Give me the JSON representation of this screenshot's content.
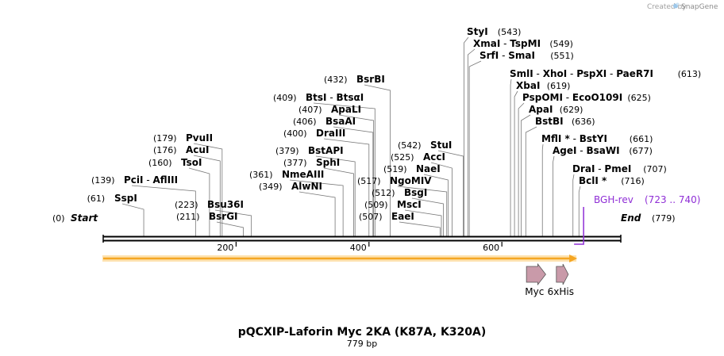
{
  "credit": {
    "prefix": "Created by",
    "brand": "SnapGene"
  },
  "title": "pQCXIP-Laforin Myc 2KA  (K87A, K320A)",
  "subtitle": "779 bp",
  "sequence_length": 779,
  "start_label": {
    "pos": "(0)",
    "name": "Start"
  },
  "end_label": {
    "name": "End",
    "pos": "(779)"
  },
  "axis_ticks": [
    "200",
    "400",
    "600"
  ],
  "sites": [
    {
      "pos": 61,
      "pos_label": "(61)",
      "names": [
        "SspI"
      ]
    },
    {
      "pos": 139,
      "pos_label": "(139)",
      "names": [
        "PciI",
        "AflIII"
      ]
    },
    {
      "pos": 160,
      "pos_label": "(160)",
      "names": [
        "TsoI"
      ]
    },
    {
      "pos": 176,
      "pos_label": "(176)",
      "names": [
        "AcuI"
      ]
    },
    {
      "pos": 179,
      "pos_label": "(179)",
      "names": [
        "PvuII"
      ]
    },
    {
      "pos": 211,
      "pos_label": "(211)",
      "names": [
        "BsrGI"
      ]
    },
    {
      "pos": 223,
      "pos_label": "(223)",
      "names": [
        "Bsu36I"
      ]
    },
    {
      "pos": 349,
      "pos_label": "(349)",
      "names": [
        "AlwNI"
      ]
    },
    {
      "pos": 361,
      "pos_label": "(361)",
      "names": [
        "NmeAIII"
      ]
    },
    {
      "pos": 377,
      "pos_label": "(377)",
      "names": [
        "SphI"
      ]
    },
    {
      "pos": 379,
      "pos_label": "(379)",
      "names": [
        "BstAPI"
      ]
    },
    {
      "pos": 400,
      "pos_label": "(400)",
      "names": [
        "DraIII"
      ]
    },
    {
      "pos": 406,
      "pos_label": "(406)",
      "names": [
        "BsaAI"
      ]
    },
    {
      "pos": 407,
      "pos_label": "(407)",
      "names": [
        "ApaLI"
      ]
    },
    {
      "pos": 409,
      "pos_label": "(409)",
      "names": [
        "BtsI",
        "BtsαI"
      ]
    },
    {
      "pos": 432,
      "pos_label": "(432)",
      "names": [
        "BsrBI"
      ]
    },
    {
      "pos": 507,
      "pos_label": "(507)",
      "names": [
        "EaeI"
      ]
    },
    {
      "pos": 509,
      "pos_label": "(509)",
      "names": [
        "MscI"
      ]
    },
    {
      "pos": 512,
      "pos_label": "(512)",
      "names": [
        "BsgI"
      ]
    },
    {
      "pos": 517,
      "pos_label": "(517)",
      "names": [
        "NgoMIV"
      ]
    },
    {
      "pos": 519,
      "pos_label": "(519)",
      "names": [
        "NaeI"
      ]
    },
    {
      "pos": 525,
      "pos_label": "(525)",
      "names": [
        "AccI"
      ]
    },
    {
      "pos": 542,
      "pos_label": "(542)",
      "names": [
        "StuI"
      ]
    },
    {
      "pos": 543,
      "pos_label": "(543)",
      "names": [
        "StyI"
      ]
    },
    {
      "pos": 549,
      "pos_label": "(549)",
      "names": [
        "XmaI",
        "TspMI"
      ]
    },
    {
      "pos": 551,
      "pos_label": "(551)",
      "names": [
        "SrfI",
        "SmaI"
      ]
    },
    {
      "pos": 613,
      "pos_label": "(613)",
      "names": [
        "SmlI",
        "XhoI",
        "PspXI",
        "PaeR7I"
      ]
    },
    {
      "pos": 619,
      "pos_label": "(619)",
      "names": [
        "XbaI"
      ]
    },
    {
      "pos": 625,
      "pos_label": "(625)",
      "names": [
        "PspOMI",
        "EcoO109I"
      ]
    },
    {
      "pos": 629,
      "pos_label": "(629)",
      "names": [
        "ApaI"
      ]
    },
    {
      "pos": 636,
      "pos_label": "(636)",
      "names": [
        "BstBI"
      ]
    },
    {
      "pos": 661,
      "pos_label": "(661)",
      "names": [
        "MflI *",
        "BstYI"
      ]
    },
    {
      "pos": 677,
      "pos_label": "(677)",
      "names": [
        "AgeI",
        "BsaWI"
      ]
    },
    {
      "pos": 707,
      "pos_label": "(707)",
      "names": [
        "DraI",
        "PmeI"
      ]
    },
    {
      "pos": 716,
      "pos_label": "(716)",
      "names": [
        "BclI *"
      ]
    }
  ],
  "primer": {
    "name": "BGH-rev",
    "range_label": "(723 .. 740)",
    "start": 723,
    "end": 740,
    "color": "#8f2ed6"
  },
  "features": [
    {
      "name": "Myc",
      "start": 637,
      "end": 666,
      "color": "#c99aa9"
    },
    {
      "name": "6xHis",
      "start": 682,
      "end": 700,
      "color": "#c99aa9"
    }
  ],
  "orf": {
    "start": 0,
    "end": 711,
    "color": "#f5a623"
  }
}
